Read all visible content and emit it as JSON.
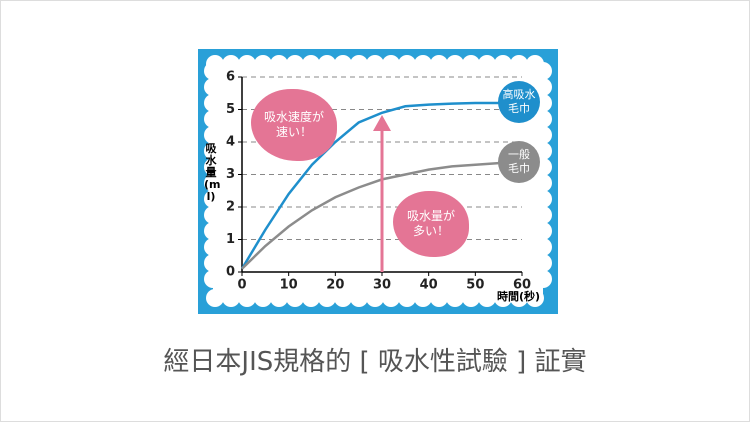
{
  "chart_data": {
    "type": "line",
    "x_label": "時間(秒)",
    "y_label": "吸水量(ml)",
    "x": [
      0,
      5,
      10,
      15,
      20,
      25,
      30,
      35,
      40,
      45,
      50,
      55
    ],
    "series": [
      {
        "name": "高吸水毛巾",
        "color": "#1f8fcc",
        "values": [
          0.1,
          1.3,
          2.4,
          3.3,
          4.0,
          4.6,
          4.9,
          5.1,
          5.15,
          5.18,
          5.2,
          5.2
        ]
      },
      {
        "name": "一般毛巾",
        "color": "#8c8c8c",
        "values": [
          0.1,
          0.8,
          1.4,
          1.9,
          2.3,
          2.6,
          2.85,
          3.0,
          3.15,
          3.25,
          3.3,
          3.35
        ]
      }
    ],
    "annotations": [
      "吸水速度が速い！",
      "吸水量が多い！"
    ],
    "xlim": [
      0,
      60
    ],
    "ylim": [
      0,
      6
    ],
    "xticks": [
      0,
      10,
      20,
      30,
      40,
      50,
      60
    ],
    "yticks": [
      0,
      1,
      2,
      3,
      4,
      5,
      6
    ],
    "grid": true
  },
  "caption": "經日本JIS規格的 [ 吸水性試驗 ] 証實"
}
